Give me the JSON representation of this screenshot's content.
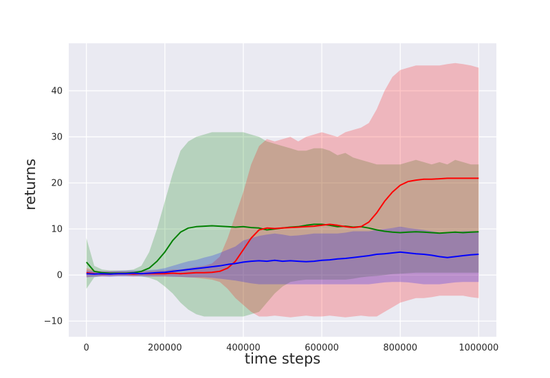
{
  "chart_data": {
    "type": "line",
    "title": "",
    "xlabel": "time steps",
    "ylabel": "returns",
    "background": "#eaeaf2",
    "grid": true,
    "grid_color": "#ffffff",
    "tick_color": "#262626",
    "xlim": [
      -45000,
      1045000
    ],
    "ylim": [
      -13.4,
      50.3
    ],
    "xticks": [
      0,
      200000,
      400000,
      600000,
      800000,
      1000000
    ],
    "xtick_labels": [
      "0",
      "200000",
      "400000",
      "600000",
      "800000",
      "1000000"
    ],
    "yticks": [
      -10,
      0,
      10,
      20,
      30,
      40
    ],
    "ytick_labels": [
      "−10",
      "0",
      "10",
      "20",
      "30",
      "40"
    ],
    "x": [
      0,
      20000,
      40000,
      60000,
      80000,
      100000,
      120000,
      140000,
      160000,
      180000,
      200000,
      220000,
      240000,
      260000,
      280000,
      300000,
      320000,
      340000,
      360000,
      380000,
      400000,
      420000,
      440000,
      460000,
      480000,
      500000,
      520000,
      540000,
      560000,
      580000,
      600000,
      620000,
      640000,
      660000,
      680000,
      700000,
      720000,
      740000,
      760000,
      780000,
      800000,
      820000,
      840000,
      860000,
      880000,
      900000,
      920000,
      940000,
      960000,
      980000,
      1000000
    ],
    "series": [
      {
        "name": "green",
        "color": "#008000",
        "band_opacity": 0.22,
        "mean": [
          2.8,
          0.8,
          0.5,
          0.4,
          0.4,
          0.4,
          0.5,
          0.8,
          1.5,
          3.0,
          5.0,
          7.5,
          9.3,
          10.2,
          10.5,
          10.6,
          10.7,
          10.6,
          10.5,
          10.4,
          10.5,
          10.3,
          10.2,
          9.8,
          10.0,
          10.2,
          10.4,
          10.5,
          10.8,
          11.0,
          11.0,
          10.8,
          10.5,
          10.6,
          10.4,
          10.5,
          10.2,
          9.8,
          9.5,
          9.3,
          9.2,
          9.3,
          9.4,
          9.3,
          9.2,
          9.1,
          9.2,
          9.3,
          9.2,
          9.3,
          9.4
        ],
        "upper": [
          8.0,
          2.0,
          1.2,
          1.0,
          1.0,
          1.0,
          1.2,
          2.0,
          5.0,
          10.0,
          16.0,
          22.0,
          27.0,
          29.0,
          30.0,
          30.5,
          31.0,
          31.0,
          31.0,
          31.0,
          31.0,
          30.5,
          30.0,
          29.0,
          28.5,
          28.0,
          27.5,
          27.0,
          27.0,
          27.5,
          27.5,
          27.0,
          26.0,
          26.5,
          25.5,
          25.0,
          24.5,
          24.0,
          24.0,
          24.0,
          24.0,
          24.5,
          25.0,
          24.5,
          24.0,
          24.5,
          24.0,
          25.0,
          24.5,
          24.0,
          24.0
        ],
        "lower": [
          -3.0,
          -0.5,
          -0.2,
          -0.2,
          -0.2,
          -0.2,
          -0.2,
          -0.3,
          -0.6,
          -1.2,
          -2.5,
          -4.0,
          -6.0,
          -7.5,
          -8.5,
          -9.0,
          -9.0,
          -9.0,
          -9.0,
          -9.0,
          -9.0,
          -8.5,
          -8.0,
          -6.0,
          -4.0,
          -2.5,
          -1.5,
          -1.2,
          -1.0,
          -1.0,
          -1.0,
          -1.0,
          -1.0,
          -1.0,
          -0.8,
          -0.5,
          -0.3,
          -0.2,
          0.0,
          0.2,
          0.3,
          0.4,
          0.5,
          0.5,
          0.5,
          0.5,
          0.5,
          0.5,
          0.5,
          0.5,
          0.5
        ]
      },
      {
        "name": "red",
        "color": "#ff0000",
        "band_opacity": 0.22,
        "mean": [
          0.5,
          0.3,
          0.2,
          0.2,
          0.3,
          0.3,
          0.2,
          0.3,
          0.3,
          0.3,
          0.3,
          0.4,
          0.3,
          0.4,
          0.5,
          0.5,
          0.6,
          0.8,
          1.5,
          3.0,
          5.5,
          8.0,
          9.8,
          10.2,
          10.1,
          10.2,
          10.3,
          10.4,
          10.5,
          10.6,
          10.8,
          11.0,
          10.8,
          10.5,
          10.3,
          10.5,
          11.5,
          13.5,
          16.0,
          18.0,
          19.5,
          20.3,
          20.6,
          20.8,
          20.8,
          20.9,
          21.0,
          21.0,
          21.0,
          21.0,
          21.0
        ],
        "upper": [
          1.5,
          1.0,
          0.8,
          0.8,
          0.8,
          0.8,
          0.8,
          0.8,
          0.9,
          1.0,
          1.0,
          1.2,
          1.2,
          1.5,
          1.8,
          2.0,
          2.5,
          4.0,
          8.0,
          13.0,
          18.0,
          24.0,
          28.0,
          29.5,
          29.0,
          29.5,
          30.0,
          29.0,
          30.0,
          30.5,
          31.0,
          30.5,
          30.0,
          31.0,
          31.5,
          32.0,
          33.0,
          36.0,
          40.0,
          43.0,
          44.5,
          45.0,
          45.5,
          45.5,
          45.5,
          45.5,
          45.8,
          46.0,
          45.8,
          45.5,
          45.0
        ],
        "lower": [
          -0.5,
          -0.3,
          -0.3,
          -0.3,
          -0.2,
          -0.2,
          -0.3,
          -0.2,
          -0.3,
          -0.3,
          -0.3,
          -0.3,
          -0.4,
          -0.5,
          -0.6,
          -0.8,
          -1.0,
          -1.5,
          -3.0,
          -5.0,
          -6.5,
          -8.0,
          -9.0,
          -9.0,
          -8.8,
          -9.0,
          -9.2,
          -9.0,
          -8.8,
          -9.0,
          -9.0,
          -8.8,
          -9.0,
          -9.2,
          -9.0,
          -8.8,
          -9.0,
          -9.0,
          -8.0,
          -7.0,
          -6.0,
          -5.5,
          -5.0,
          -5.0,
          -4.8,
          -4.5,
          -4.5,
          -4.5,
          -4.5,
          -4.8,
          -5.0
        ]
      },
      {
        "name": "blue",
        "color": "#0000ff",
        "band_opacity": 0.22,
        "mean": [
          0.3,
          0.2,
          0.3,
          0.2,
          0.3,
          0.3,
          0.4,
          0.3,
          0.4,
          0.5,
          0.6,
          0.8,
          1.0,
          1.2,
          1.4,
          1.6,
          1.8,
          2.0,
          2.3,
          2.5,
          2.8,
          3.0,
          3.1,
          3.0,
          3.2,
          3.0,
          3.1,
          3.0,
          2.9,
          3.0,
          3.2,
          3.3,
          3.5,
          3.6,
          3.8,
          4.0,
          4.2,
          4.5,
          4.6,
          4.8,
          5.0,
          4.8,
          4.6,
          4.5,
          4.3,
          4.0,
          3.8,
          4.0,
          4.2,
          4.4,
          4.5
        ],
        "upper": [
          1.0,
          0.8,
          0.8,
          0.8,
          0.9,
          1.0,
          1.0,
          1.0,
          1.1,
          1.2,
          1.5,
          2.0,
          2.5,
          3.0,
          3.3,
          3.8,
          4.2,
          4.8,
          5.5,
          6.2,
          7.5,
          8.0,
          8.5,
          8.8,
          9.0,
          8.8,
          8.5,
          8.6,
          8.8,
          9.0,
          9.0,
          9.0,
          9.0,
          9.2,
          9.5,
          9.5,
          9.5,
          9.8,
          10.0,
          10.2,
          10.5,
          10.2,
          10.0,
          9.8,
          9.5,
          9.2,
          9.0,
          9.2,
          9.5,
          9.5,
          9.5
        ],
        "lower": [
          -0.5,
          -0.4,
          -0.3,
          -0.4,
          -0.3,
          -0.3,
          -0.3,
          -0.3,
          -0.3,
          -0.3,
          -0.3,
          -0.4,
          -0.4,
          -0.5,
          -0.5,
          -0.5,
          -0.6,
          -0.8,
          -1.0,
          -1.2,
          -1.5,
          -1.8,
          -2.0,
          -2.0,
          -2.0,
          -2.0,
          -2.0,
          -2.0,
          -2.0,
          -2.0,
          -2.0,
          -2.0,
          -2.0,
          -2.0,
          -2.0,
          -2.0,
          -2.0,
          -1.8,
          -1.6,
          -1.5,
          -1.5,
          -1.6,
          -1.8,
          -2.0,
          -2.0,
          -2.0,
          -1.8,
          -1.6,
          -1.5,
          -1.5,
          -1.5
        ]
      }
    ]
  }
}
